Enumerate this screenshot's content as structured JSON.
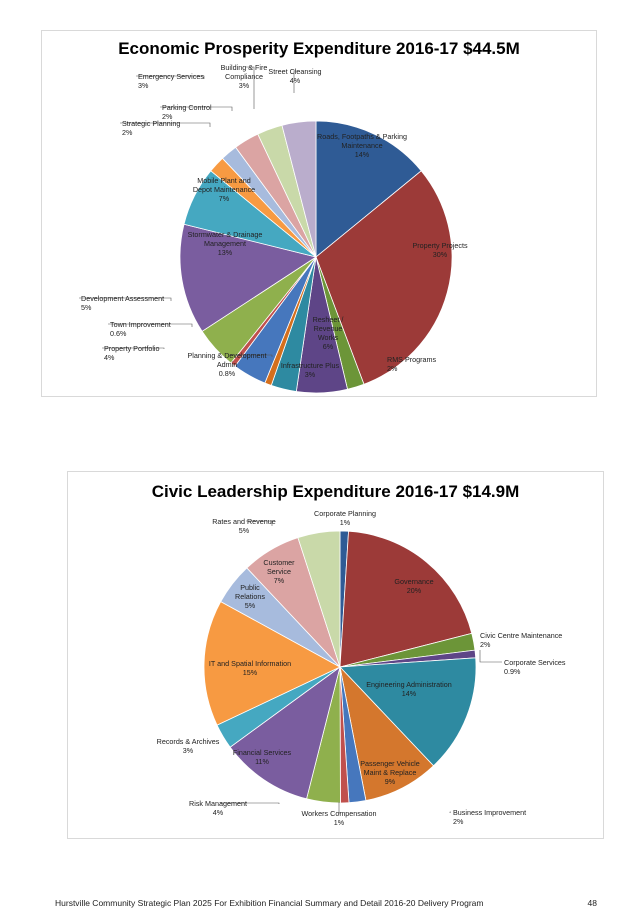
{
  "chart_data": [
    {
      "type": "pie",
      "title": "Economic Prosperity Expenditure 2016-17 $44.5M",
      "slices": [
        {
          "lines": [
            "Roads, Footpaths & Parking",
            "Maintenance",
            "14%"
          ],
          "value": 14,
          "color": "#2f5b95"
        },
        {
          "lines": [
            "Property Projects",
            "30%"
          ],
          "value": 30,
          "color": "#9c3a38"
        },
        {
          "lines": [
            "RMS Programs",
            "2%"
          ],
          "value": 2,
          "color": "#6c9538"
        },
        {
          "lines": [
            "Resheet /",
            "Revenue",
            "Works",
            "6%"
          ],
          "value": 6,
          "color": "#5e4587"
        },
        {
          "lines": [
            "Infrastructure Plus",
            "3%"
          ],
          "value": 3,
          "color": "#2e8aa1"
        },
        {
          "lines": [
            "Planning & Development",
            "Admin",
            "0.8%"
          ],
          "value": 0.8,
          "color": "#d46f1d"
        },
        {
          "lines": [
            "Property Portfolio",
            "4%"
          ],
          "value": 4,
          "color": "#4677bd"
        },
        {
          "lines": [
            "Town Improvement",
            "0.6%"
          ],
          "value": 0.6,
          "color": "#c0504d"
        },
        {
          "lines": [
            "Development Assessment",
            "5%"
          ],
          "value": 5,
          "color": "#8fb04d"
        },
        {
          "lines": [
            "Stormwater & Drainage",
            "Management",
            "13%"
          ],
          "value": 13,
          "color": "#7a5d9f"
        },
        {
          "lines": [
            "Mobile Plant and",
            "Depot Maintenance",
            "7%"
          ],
          "value": 7,
          "color": "#45a8c1"
        },
        {
          "lines": [
            "Strategic Planning",
            "2%"
          ],
          "value": 2,
          "color": "#f79a42"
        },
        {
          "lines": [
            "Parking Control",
            "2%"
          ],
          "value": 2,
          "color": "#a7bbdd"
        },
        {
          "lines": [
            "Emergency Services",
            "3%"
          ],
          "value": 3,
          "color": "#dba4a3"
        },
        {
          "lines": [
            "Building & Fire",
            "Compliance",
            "3%"
          ],
          "value": 3,
          "color": "#c9d9a9"
        },
        {
          "lines": [
            "Street Cleansing",
            "4%"
          ],
          "value": 4,
          "color": "#baadcc"
        }
      ]
    },
    {
      "type": "pie",
      "title": "Civic Leadership Expenditure 2016-17 $14.9M",
      "slices": [
        {
          "lines": [
            "Corporate Planning",
            "1%"
          ],
          "value": 1,
          "color": "#2f5b95"
        },
        {
          "lines": [
            "Governance",
            "20%"
          ],
          "value": 20,
          "color": "#9c3a38"
        },
        {
          "lines": [
            "Civic Centre Maintenance",
            "2%"
          ],
          "value": 2,
          "color": "#6c9538"
        },
        {
          "lines": [
            "Corporate Services",
            "0.9%"
          ],
          "value": 0.9,
          "color": "#5e4587"
        },
        {
          "lines": [
            "Engineering Administration",
            "14%"
          ],
          "value": 14,
          "color": "#2e8aa1"
        },
        {
          "lines": [
            "Passenger Vehicle",
            "Maint & Replace",
            "9%"
          ],
          "value": 9,
          "color": "#d4772d"
        },
        {
          "lines": [
            "Business Improvement",
            "2%"
          ],
          "value": 2,
          "color": "#4677bd"
        },
        {
          "lines": [
            "Workers Compensation",
            "1%"
          ],
          "value": 1,
          "color": "#c0504d"
        },
        {
          "lines": [
            "Risk Management",
            "4%"
          ],
          "value": 4,
          "color": "#8fb04d"
        },
        {
          "lines": [
            "Financial Services",
            "11%"
          ],
          "value": 11,
          "color": "#7a5d9f"
        },
        {
          "lines": [
            "Records & Archives",
            "3%"
          ],
          "value": 3,
          "color": "#45a8c1"
        },
        {
          "lines": [
            "IT and Spatial Information",
            "15%"
          ],
          "value": 15,
          "color": "#f79a42"
        },
        {
          "lines": [
            "Public",
            "Relations",
            "5%"
          ],
          "value": 5,
          "color": "#a7bbdd"
        },
        {
          "lines": [
            "Customer",
            "Service",
            "7%"
          ],
          "value": 7,
          "color": "#dba4a3"
        },
        {
          "lines": [
            "Rates and Revenue",
            "5%"
          ],
          "value": 5,
          "color": "#c9d9a9"
        }
      ]
    }
  ],
  "footer": {
    "left": "Hurstville Community Strategic Plan 2025   For Exhibition Financial Summary and Detail 2016-20 Delivery Program",
    "page": "48"
  }
}
